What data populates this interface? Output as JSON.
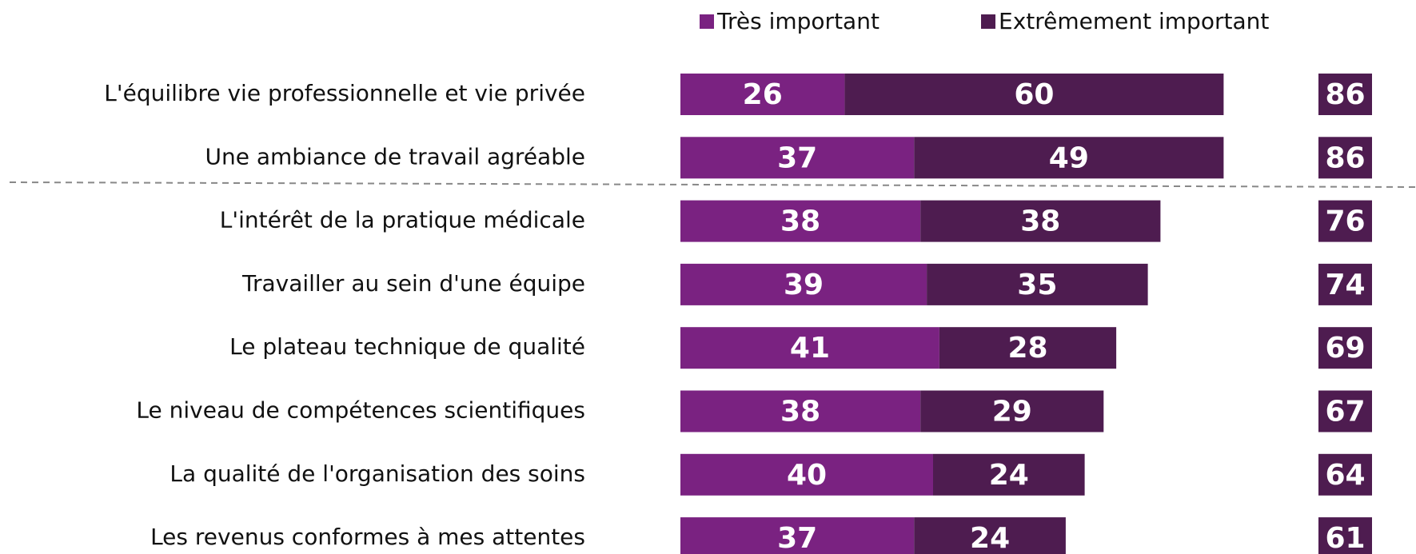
{
  "chart_data": {
    "type": "stacked-bar-horizontal",
    "categories": [
      "L'équilibre vie professionnelle et vie privée",
      "Une ambiance de travail agréable",
      "L'intérêt de la pratique médicale",
      "Travailler au sein d'une équipe",
      "Le plateau technique de qualité",
      "Le niveau de compétences scientifiques",
      "La qualité de l'organisation des soins",
      "Les revenus conformes à mes attentes"
    ],
    "series": [
      {
        "name": "Très important",
        "color": "#7a2281",
        "values": [
          26,
          37,
          38,
          39,
          41,
          38,
          40,
          37
        ]
      },
      {
        "name": "Extrêmement important",
        "color": "#4e1c50",
        "values": [
          60,
          49,
          38,
          35,
          28,
          29,
          24,
          24
        ]
      }
    ],
    "totals": [
      86,
      86,
      76,
      74,
      69,
      67,
      64,
      61
    ],
    "totals_color": "#4e1c50"
  }
}
